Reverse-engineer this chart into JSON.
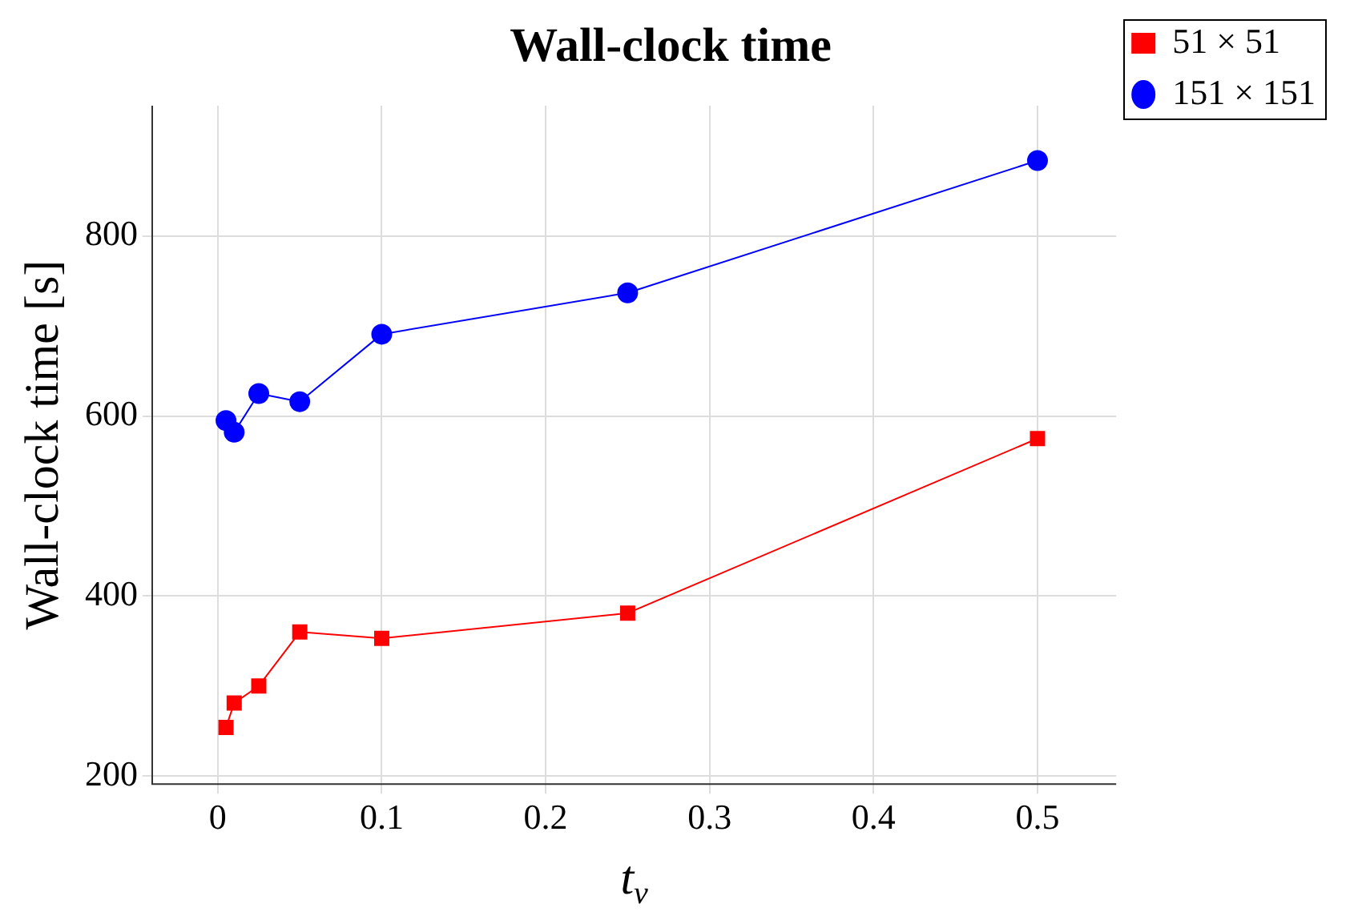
{
  "chart_data": {
    "type": "line",
    "title": "Wall-clock time",
    "xlabel": "t$_{v}$",
    "ylabel": "Wall-clock time [s]",
    "x": [
      0.005,
      0.01,
      0.025,
      0.05,
      0.1,
      0.25,
      0.5
    ],
    "series": [
      {
        "name": "51 × 51",
        "color": "#ff0000",
        "marker": "square",
        "values": [
          254,
          281,
          300,
          360,
          353,
          381,
          575
        ]
      },
      {
        "name": "151 × 151",
        "color": "#0000ff",
        "marker": "circle",
        "values": [
          595,
          582,
          625,
          616,
          691,
          737,
          884
        ]
      }
    ],
    "xlim": [
      -0.04,
      0.548
    ],
    "xticks": [
      {
        "value": 0,
        "label": "0"
      },
      0.1,
      0.2,
      0.3,
      0.4,
      0.5
    ],
    "ylim": [
      191,
      945
    ],
    "yticks": [
      200,
      400,
      600,
      800
    ],
    "grid": true,
    "legend": "top right",
    "line_style": "solid"
  }
}
